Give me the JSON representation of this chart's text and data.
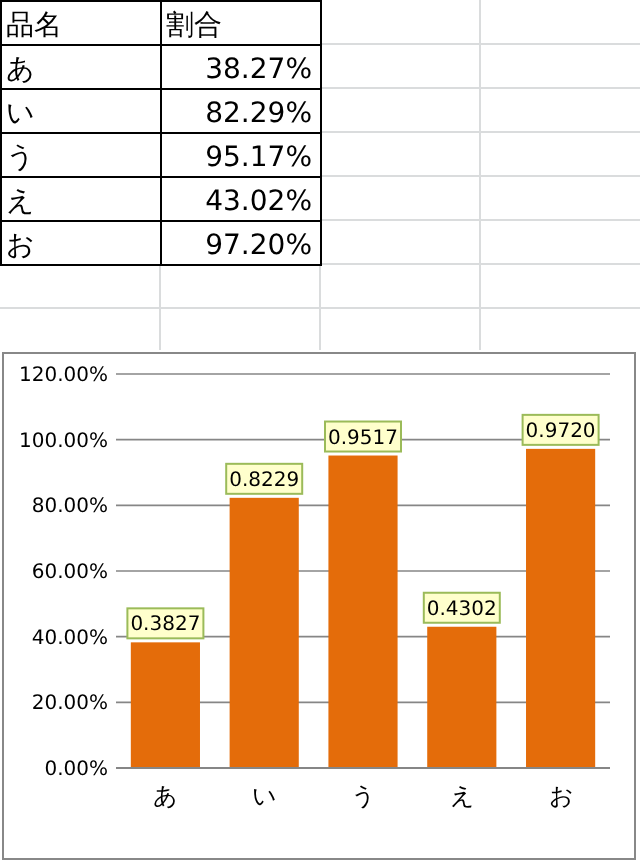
{
  "chart_data": {
    "type": "bar",
    "categories": [
      "あ",
      "い",
      "う",
      "え",
      "お"
    ],
    "values": [
      0.3827,
      0.8229,
      0.9517,
      0.4302,
      0.972
    ],
    "value_labels": [
      "0.3827",
      "0.8229",
      "0.9517",
      "0.4302",
      "0.9720"
    ],
    "color": "#e46c0a",
    "ylim": [
      0,
      1.2
    ],
    "yticks": [
      {
        "value": 0,
        "label": "0.00%"
      },
      {
        "value": 0.2,
        "label": "20.00%"
      },
      {
        "value": 0.4,
        "label": "40.00%"
      },
      {
        "value": 0.6,
        "label": "60.00%"
      },
      {
        "value": 0.8,
        "label": "80.00%"
      },
      {
        "value": 1,
        "label": "100.00%"
      },
      {
        "value": 1.2,
        "label": "120.00%"
      }
    ],
    "grid": "y",
    "annotations": [
      "品名",
      "割合",
      "あ",
      "38.27%",
      "い",
      "82.29%",
      "う",
      "95.17%",
      "え",
      "43.02%",
      "お",
      "97.20%"
    ]
  }
}
